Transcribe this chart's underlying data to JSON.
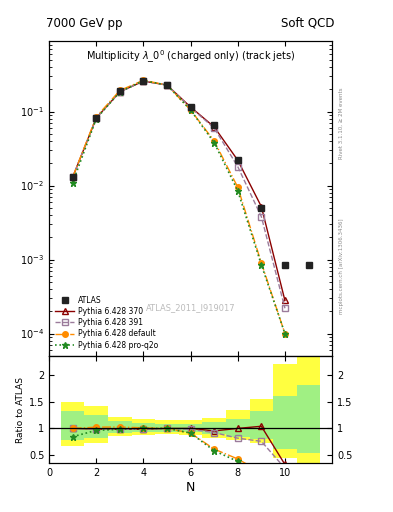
{
  "title_top": "7000 GeV pp",
  "title_right": "Soft QCD",
  "main_title": "Multiplicity $\\lambda\\_0^0$ (charged only) (track jets)",
  "watermark": "ATLAS_2011_I919017",
  "right_label_top": "Rivet 3.1.10, ≥ 2M events",
  "right_label_bottom": "mcplots.cern.ch [arXiv:1306.3436]",
  "xlabel": "N",
  "ylabel_ratio": "Ratio to ATLAS",
  "atlas_x": [
    1,
    2,
    3,
    4,
    5,
    6,
    7,
    8,
    9,
    10,
    11
  ],
  "atlas_y": [
    0.013,
    0.083,
    0.188,
    0.262,
    0.228,
    0.115,
    0.065,
    0.022,
    0.005,
    0.00085,
    0.00085
  ],
  "py370_x": [
    1,
    2,
    3,
    4,
    5,
    6,
    7,
    8,
    9,
    10
  ],
  "py370_y": [
    0.013,
    0.082,
    0.185,
    0.258,
    0.228,
    0.115,
    0.062,
    0.022,
    0.0052,
    0.00028
  ],
  "py391_x": [
    1,
    2,
    3,
    4,
    5,
    6,
    7,
    8,
    9,
    10
  ],
  "py391_y": [
    0.013,
    0.082,
    0.185,
    0.258,
    0.228,
    0.113,
    0.06,
    0.018,
    0.0038,
    0.00022
  ],
  "pydef_x": [
    1,
    2,
    3,
    4,
    5,
    6,
    7,
    8,
    9,
    10
  ],
  "pydef_y": [
    0.013,
    0.085,
    0.193,
    0.265,
    0.228,
    0.105,
    0.04,
    0.0095,
    0.0009,
    0.0001
  ],
  "pyprq_x": [
    1,
    2,
    3,
    4,
    5,
    6,
    7,
    8,
    9,
    10
  ],
  "pyprq_y": [
    0.011,
    0.08,
    0.185,
    0.262,
    0.228,
    0.105,
    0.038,
    0.0085,
    0.00085,
    0.0001
  ],
  "color_atlas": "#222222",
  "color_py370": "#8B0000",
  "color_py391": "#9B7B9B",
  "color_pydef": "#FF8C00",
  "color_pyprq": "#228B22",
  "ratio_ylim": [
    0.35,
    2.35
  ],
  "ratio_yticks": [
    0.5,
    1.0,
    1.5,
    2.0
  ],
  "ratio_yticklabels": [
    "0.5",
    "1",
    "1.5",
    "2"
  ],
  "main_ylim_lo": 5e-05,
  "main_ylim_hi": 0.9,
  "xlim": [
    0,
    12
  ],
  "band_bins": [
    0.5,
    1.5,
    2.5,
    3.5,
    4.5,
    5.5,
    6.5,
    7.5,
    8.5,
    9.5,
    10.5,
    11.5
  ],
  "yellow_lo": [
    0.68,
    0.72,
    0.85,
    0.88,
    0.9,
    0.88,
    0.83,
    0.78,
    0.72,
    0.45,
    0.3
  ],
  "yellow_hi": [
    1.5,
    1.42,
    1.22,
    1.18,
    1.15,
    1.15,
    1.2,
    1.35,
    1.55,
    2.2,
    2.35
  ],
  "green_lo": [
    0.78,
    0.83,
    0.91,
    0.93,
    0.94,
    0.93,
    0.89,
    0.84,
    0.8,
    0.62,
    0.55
  ],
  "green_hi": [
    1.32,
    1.25,
    1.13,
    1.1,
    1.08,
    1.09,
    1.12,
    1.18,
    1.32,
    1.6,
    1.8
  ]
}
